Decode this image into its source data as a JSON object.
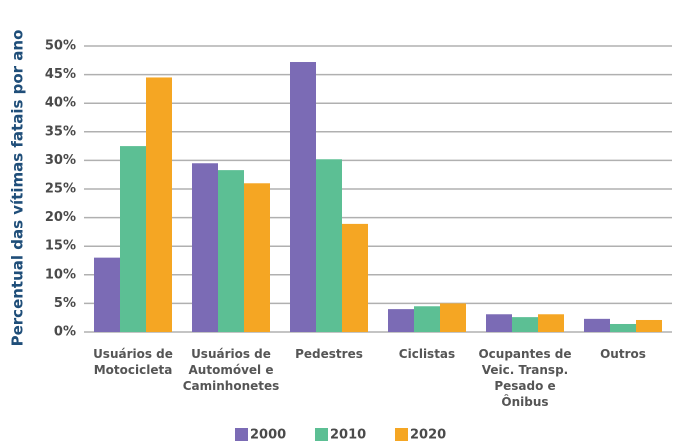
{
  "chart_data": {
    "type": "bar",
    "y_label": "Percentual das vítimas fatais por ano",
    "categories": [
      [
        "Usuários de",
        "Motocicleta"
      ],
      [
        "Usuários de",
        "Automóvel e",
        "Caminhonetes"
      ],
      [
        "Pedestres"
      ],
      [
        "Ciclistas"
      ],
      [
        "Ocupantes de",
        "Veic. Transp.",
        "Pesado e",
        "Ônibus"
      ],
      [
        "Outros"
      ]
    ],
    "series": [
      {
        "name": "2000",
        "color": "#7b6bb5",
        "values": [
          13,
          29.5,
          47.2,
          4,
          3.1,
          2.3
        ]
      },
      {
        "name": "2010",
        "color": "#5cbf94",
        "values": [
          32.5,
          28.3,
          30.2,
          4.5,
          2.6,
          1.4
        ]
      },
      {
        "name": "2020",
        "color": "#f5a623",
        "values": [
          44.5,
          26,
          18.9,
          5,
          3.1,
          2.1
        ]
      }
    ],
    "ylim": [
      0,
      50
    ],
    "yticks": [
      {
        "value": 0,
        "label": "0%"
      },
      {
        "value": 5,
        "label": "5%"
      },
      {
        "value": 10,
        "label": "10%"
      },
      {
        "value": 15,
        "label": "15%"
      },
      {
        "value": 20,
        "label": "20%"
      },
      {
        "value": 25,
        "label": "25%"
      },
      {
        "value": 30,
        "label": "30%"
      },
      {
        "value": 35,
        "label": "35%"
      },
      {
        "value": 40,
        "label": "40%"
      },
      {
        "value": 45,
        "label": "45%"
      },
      {
        "value": 50,
        "label": "50%"
      }
    ],
    "grid": true,
    "legend": "bottom"
  }
}
